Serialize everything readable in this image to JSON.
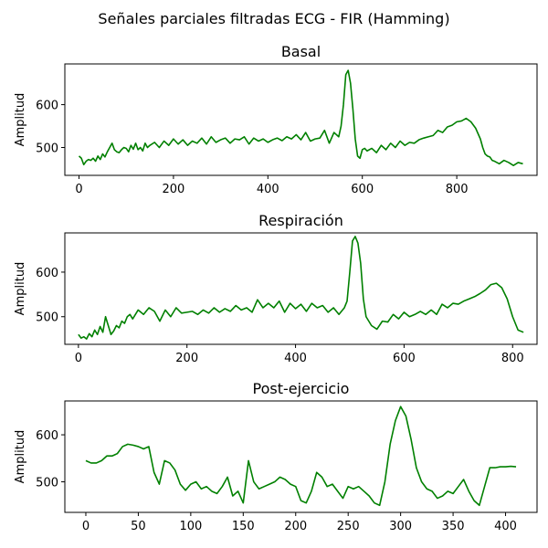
{
  "figure": {
    "suptitle": "Señales parciales filtradas ECG - FIR (Hamming)"
  },
  "colors": {
    "line": "#008000",
    "axes": "#000000"
  },
  "chart_data": [
    {
      "type": "line",
      "title": "Basal",
      "ylabel": "Amplitud",
      "xlabel": "",
      "xlim": [
        -30,
        970
      ],
      "ylim": [
        435,
        695
      ],
      "xticks": [
        0,
        200,
        400,
        600,
        800
      ],
      "yticks": [
        500,
        600
      ],
      "grid": false,
      "series": [
        {
          "x": [
            0,
            5,
            10,
            15,
            20,
            25,
            30,
            35,
            40,
            45,
            50,
            55,
            60,
            65,
            70,
            75,
            80,
            85,
            90,
            95,
            100,
            105,
            110,
            115,
            120,
            125,
            130,
            135,
            140,
            145,
            150,
            160,
            170,
            180,
            190,
            200,
            210,
            220,
            230,
            240,
            250,
            260,
            270,
            280,
            290,
            300,
            310,
            320,
            330,
            340,
            350,
            360,
            370,
            380,
            390,
            400,
            410,
            420,
            430,
            440,
            450,
            460,
            470,
            480,
            490,
            500,
            510,
            520,
            530,
            540,
            550,
            555,
            560,
            565,
            570,
            575,
            580,
            585,
            590,
            595,
            600,
            605,
            610,
            620,
            630,
            640,
            650,
            660,
            670,
            680,
            690,
            700,
            710,
            720,
            730,
            740,
            750,
            760,
            770,
            780,
            790,
            800,
            810,
            820,
            830,
            840,
            850,
            855,
            860,
            865,
            870,
            875,
            880,
            890,
            900,
            910,
            920,
            930,
            940
          ],
          "y": [
            480,
            475,
            460,
            468,
            472,
            470,
            475,
            468,
            480,
            472,
            485,
            478,
            490,
            500,
            510,
            495,
            490,
            488,
            495,
            500,
            498,
            490,
            505,
            496,
            510,
            495,
            500,
            492,
            510,
            500,
            505,
            512,
            500,
            515,
            505,
            520,
            508,
            518,
            505,
            515,
            510,
            522,
            508,
            525,
            512,
            518,
            522,
            510,
            520,
            518,
            525,
            508,
            522,
            515,
            520,
            512,
            518,
            522,
            516,
            525,
            520,
            530,
            518,
            535,
            515,
            520,
            522,
            540,
            510,
            535,
            525,
            550,
            600,
            670,
            680,
            650,
            590,
            520,
            480,
            475,
            495,
            498,
            492,
            498,
            488,
            505,
            495,
            510,
            500,
            515,
            505,
            512,
            510,
            518,
            522,
            525,
            528,
            540,
            535,
            548,
            552,
            560,
            562,
            568,
            560,
            545,
            520,
            500,
            485,
            480,
            478,
            470,
            468,
            462,
            470,
            465,
            458,
            465,
            462
          ]
        }
      ]
    },
    {
      "type": "line",
      "title": "Respiración",
      "ylabel": "Amplitud",
      "xlabel": "",
      "xlim": [
        -25,
        845
      ],
      "ylim": [
        438,
        688
      ],
      "xticks": [
        0,
        200,
        400,
        600,
        800
      ],
      "yticks": [
        500,
        600
      ],
      "grid": false,
      "series": [
        {
          "x": [
            0,
            5,
            10,
            15,
            20,
            25,
            30,
            35,
            40,
            45,
            50,
            55,
            60,
            65,
            70,
            75,
            80,
            85,
            90,
            95,
            100,
            110,
            120,
            130,
            140,
            150,
            160,
            170,
            180,
            190,
            200,
            210,
            220,
            230,
            240,
            250,
            260,
            270,
            280,
            290,
            300,
            310,
            320,
            330,
            340,
            350,
            360,
            370,
            380,
            390,
            400,
            410,
            420,
            430,
            440,
            450,
            460,
            470,
            480,
            490,
            495,
            500,
            505,
            510,
            515,
            520,
            525,
            530,
            535,
            540,
            550,
            560,
            570,
            580,
            590,
            600,
            610,
            620,
            630,
            640,
            650,
            660,
            670,
            680,
            690,
            700,
            710,
            720,
            730,
            740,
            750,
            760,
            770,
            780,
            790,
            800,
            810,
            820
          ],
          "y": [
            460,
            452,
            455,
            450,
            462,
            455,
            470,
            460,
            478,
            465,
            500,
            480,
            460,
            468,
            480,
            475,
            490,
            485,
            500,
            505,
            495,
            515,
            505,
            520,
            512,
            490,
            515,
            500,
            520,
            508,
            510,
            512,
            505,
            515,
            508,
            520,
            510,
            518,
            512,
            525,
            515,
            520,
            510,
            538,
            520,
            530,
            520,
            535,
            510,
            530,
            518,
            528,
            512,
            530,
            520,
            525,
            510,
            520,
            505,
            520,
            535,
            600,
            670,
            680,
            665,
            620,
            540,
            500,
            490,
            480,
            472,
            490,
            488,
            505,
            495,
            510,
            500,
            505,
            512,
            505,
            515,
            505,
            528,
            520,
            530,
            528,
            535,
            540,
            545,
            552,
            560,
            572,
            575,
            565,
            540,
            500,
            470,
            465
          ]
        }
      ]
    },
    {
      "type": "line",
      "title": "Post-ejercicio",
      "ylabel": "Amplitud",
      "xlabel": "",
      "xlim": [
        -20,
        430
      ],
      "ylim": [
        435,
        672
      ],
      "xticks": [
        0,
        50,
        100,
        150,
        200,
        250,
        300,
        350,
        400
      ],
      "yticks": [
        500,
        600
      ],
      "grid": false,
      "series": [
        {
          "x": [
            0,
            5,
            10,
            15,
            20,
            25,
            30,
            35,
            40,
            45,
            50,
            55,
            60,
            65,
            70,
            75,
            80,
            85,
            90,
            95,
            100,
            105,
            110,
            115,
            120,
            125,
            130,
            135,
            140,
            145,
            150,
            155,
            160,
            165,
            170,
            175,
            180,
            185,
            190,
            195,
            200,
            205,
            210,
            215,
            220,
            225,
            230,
            235,
            240,
            245,
            250,
            255,
            260,
            265,
            270,
            275,
            280,
            285,
            290,
            295,
            300,
            305,
            310,
            315,
            320,
            325,
            330,
            335,
            340,
            345,
            350,
            355,
            360,
            365,
            370,
            375,
            380,
            385,
            390,
            395,
            400,
            405,
            410
          ],
          "y": [
            545,
            540,
            540,
            545,
            555,
            555,
            560,
            575,
            580,
            578,
            575,
            570,
            575,
            520,
            495,
            545,
            540,
            525,
            495,
            482,
            495,
            500,
            485,
            490,
            480,
            475,
            490,
            510,
            470,
            480,
            455,
            545,
            500,
            485,
            490,
            495,
            500,
            510,
            505,
            495,
            490,
            460,
            455,
            480,
            520,
            510,
            490,
            495,
            480,
            465,
            490,
            485,
            490,
            480,
            470,
            455,
            450,
            500,
            580,
            630,
            660,
            640,
            590,
            530,
            500,
            485,
            480,
            465,
            470,
            480,
            475,
            490,
            505,
            480,
            460,
            450,
            490,
            530,
            530,
            532,
            532,
            533,
            532
          ]
        }
      ]
    }
  ]
}
